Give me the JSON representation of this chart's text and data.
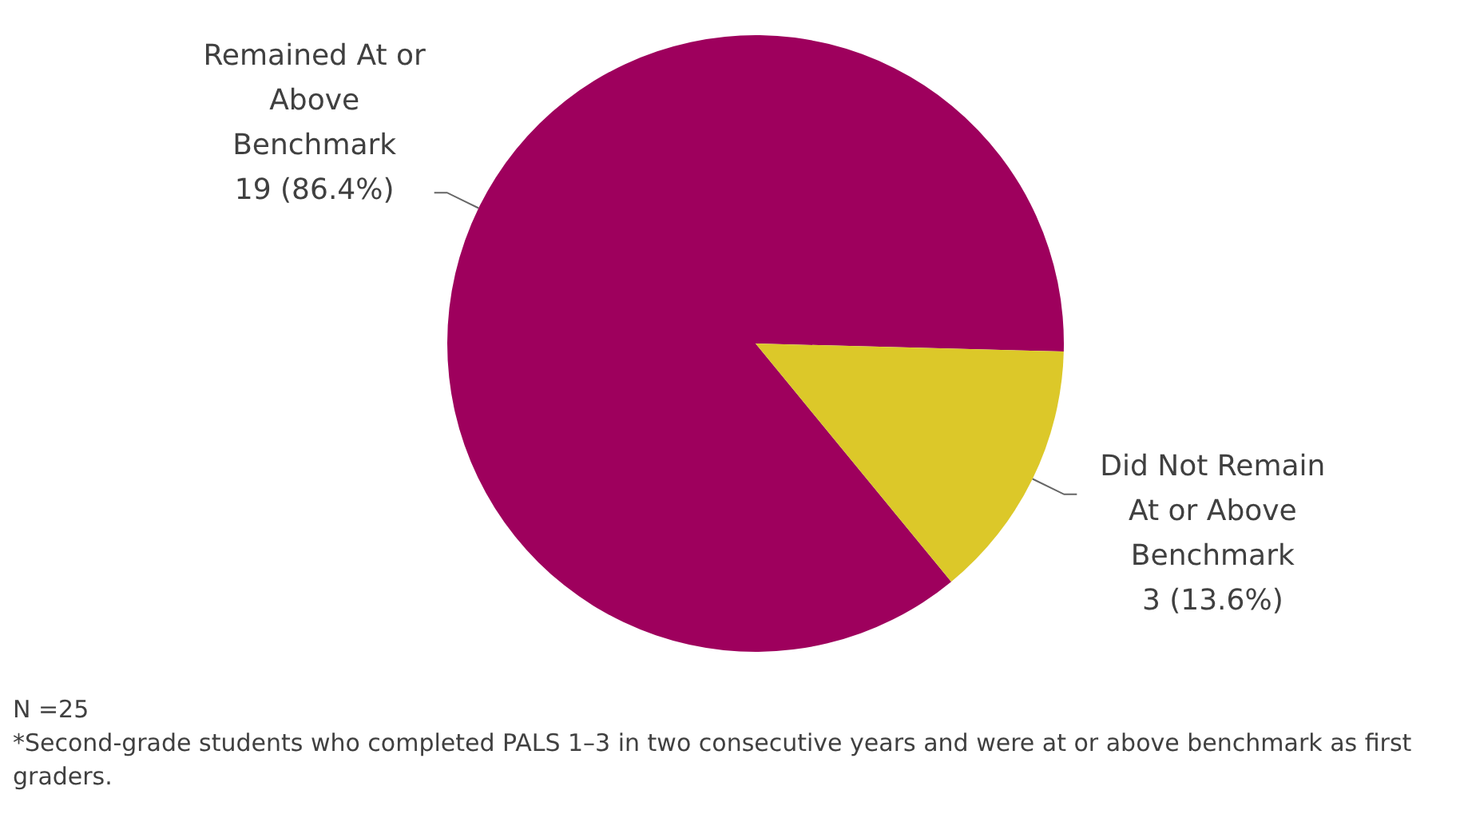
{
  "chart_data": {
    "type": "pie",
    "categories": [
      "Remained At or Above Benchmark",
      "Did Not Remain At or Above Benchmark"
    ],
    "values": [
      19,
      3
    ],
    "colors": [
      "#9e005d",
      "#dcc829"
    ],
    "value_labels": [
      "19 (86.4%)",
      "3 (13.6%)"
    ],
    "legend": false,
    "annotations": [
      "N =25",
      "*Second-grade students who completed PALS 1–3 in two consecutive years and were at or above benchmark as first graders."
    ]
  }
}
